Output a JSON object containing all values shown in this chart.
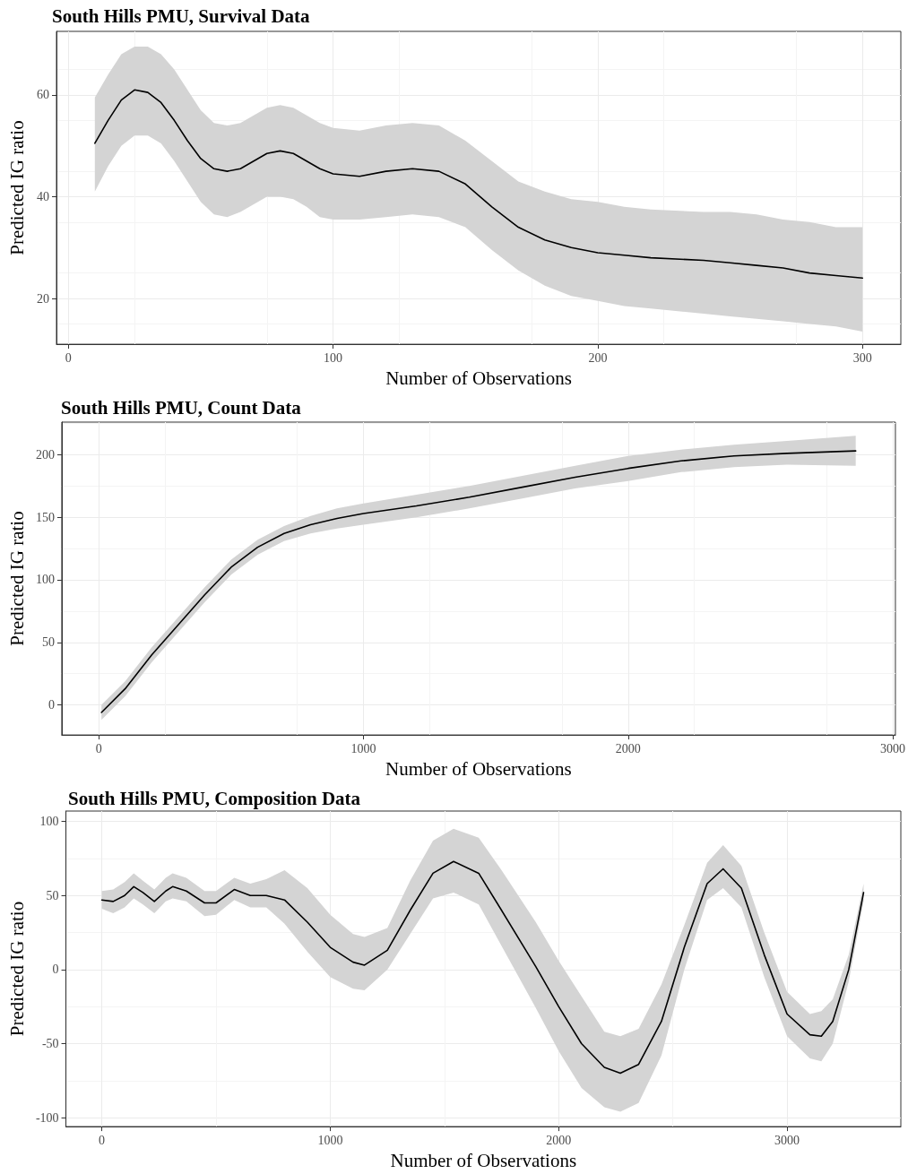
{
  "chart_data": [
    {
      "type": "line",
      "title": "South Hills PMU, Survival Data",
      "xlabel": "Number of Observations",
      "ylabel": "Predicted IG ratio",
      "grid": true,
      "x": [
        10,
        15,
        20,
        25,
        30,
        35,
        40,
        45,
        50,
        55,
        60,
        65,
        70,
        75,
        80,
        85,
        90,
        95,
        100,
        110,
        120,
        130,
        140,
        150,
        160,
        170,
        180,
        190,
        200,
        210,
        220,
        240,
        250,
        260,
        270,
        280,
        290,
        300
      ],
      "xlim": [
        -4.5,
        314.5
      ],
      "xticks": [
        0,
        100,
        200,
        300
      ],
      "ylim": [
        11,
        72.5
      ],
      "yticks": [
        20,
        40,
        60
      ],
      "series": [
        {
          "color": "#000000",
          "values": [
            50.5,
            55,
            59,
            61,
            60.5,
            58.5,
            55,
            51,
            47.5,
            45.5,
            45,
            45.5,
            47,
            48.5,
            49,
            48.5,
            47,
            45.5,
            44.5,
            44,
            45,
            45.5,
            45,
            42.5,
            38,
            34,
            31.5,
            30,
            29,
            28.5,
            28,
            27.5,
            27,
            26.5,
            26,
            25,
            24.5,
            24
          ],
          "lower": [
            41,
            46,
            50,
            52,
            52,
            50.5,
            47,
            43,
            39,
            36.5,
            36,
            37,
            38.5,
            40,
            40,
            39.5,
            38,
            36,
            35.5,
            35.5,
            36,
            36.5,
            36,
            34,
            29.5,
            25.5,
            22.5,
            20.5,
            19.5,
            18.5,
            18,
            17,
            16.5,
            16,
            15.5,
            15,
            14.5,
            13.5
          ],
          "upper": [
            59.5,
            64,
            68,
            69.5,
            69.5,
            68,
            65,
            61,
            57,
            54.5,
            54,
            54.5,
            56,
            57.5,
            58,
            57.5,
            56,
            54.5,
            53.5,
            53,
            54,
            54.5,
            54,
            51,
            47,
            43,
            41,
            39.5,
            39,
            38,
            37.5,
            37,
            37,
            36.5,
            35.5,
            35,
            34,
            34
          ]
        }
      ]
    },
    {
      "type": "line",
      "title": "South Hills PMU, Count Data",
      "xlabel": "Number of Observations",
      "ylabel": "Predicted IG ratio",
      "grid": true,
      "x": [
        10,
        100,
        200,
        300,
        400,
        500,
        600,
        700,
        800,
        900,
        1000,
        1200,
        1400,
        1600,
        1800,
        2000,
        2200,
        2400,
        2600,
        2860
      ],
      "xlim": [
        -140,
        3010
      ],
      "xticks": [
        0,
        1000,
        2000,
        3000
      ],
      "ylim": [
        -24,
        226
      ],
      "yticks": [
        0,
        50,
        100,
        150,
        200
      ],
      "series": [
        {
          "color": "#000000",
          "values": [
            -6,
            13,
            40,
            64,
            88,
            110,
            126,
            137,
            144,
            149,
            153,
            159,
            166,
            174,
            182,
            189,
            195,
            199,
            201,
            203
          ],
          "lower": [
            -12,
            7,
            34,
            58,
            82,
            104,
            120,
            131,
            137,
            141,
            144,
            150,
            157,
            165,
            173,
            179,
            186,
            190,
            192,
            191
          ],
          "upper": [
            0,
            19,
            46,
            70,
            94,
            116,
            132,
            143,
            151,
            157,
            161,
            168,
            175,
            183,
            191,
            199,
            204,
            208,
            211,
            215
          ]
        }
      ]
    },
    {
      "type": "line",
      "title": "South Hills PMU, Composition Data",
      "xlabel": "Number of Observations",
      "ylabel": "Predicted IG ratio",
      "grid": true,
      "x": [
        0,
        50,
        100,
        140,
        180,
        230,
        280,
        310,
        370,
        450,
        500,
        580,
        650,
        720,
        800,
        900,
        1000,
        1100,
        1150,
        1250,
        1350,
        1450,
        1540,
        1650,
        1750,
        1900,
        2000,
        2100,
        2200,
        2270,
        2350,
        2450,
        2550,
        2650,
        2720,
        2800,
        2900,
        3000,
        3100,
        3150,
        3200,
        3270,
        3335
      ],
      "xlim": [
        -157,
        3498
      ],
      "xticks": [
        0,
        1000,
        2000,
        3000
      ],
      "ylim": [
        -106,
        107
      ],
      "yticks": [
        -100,
        -50,
        0,
        50,
        100
      ],
      "series": [
        {
          "color": "#000000",
          "values": [
            47,
            46,
            50,
            56,
            52,
            46,
            53,
            56,
            53,
            45,
            45,
            54,
            50,
            50,
            47,
            32,
            15,
            5,
            3,
            13,
            40,
            65,
            73,
            65,
            40,
            2,
            -25,
            -50,
            -66,
            -70,
            -64,
            -35,
            15,
            58,
            68,
            55,
            10,
            -30,
            -44,
            -45,
            -35,
            0,
            52
          ],
          "lower": [
            41,
            38,
            42,
            48,
            44,
            38,
            46,
            48,
            46,
            36,
            37,
            47,
            42,
            42,
            31,
            12,
            -5,
            -13,
            -14,
            0,
            24,
            48,
            52,
            44,
            16,
            -26,
            -55,
            -80,
            -93,
            -96,
            -90,
            -58,
            0,
            47,
            55,
            42,
            -5,
            -45,
            -60,
            -62,
            -50,
            -8,
            46
          ],
          "upper": [
            53,
            54,
            59,
            65,
            60,
            54,
            62,
            65,
            62,
            53,
            53,
            62,
            58,
            61,
            67,
            55,
            37,
            24,
            22,
            28,
            60,
            87,
            95,
            89,
            67,
            32,
            6,
            -18,
            -42,
            -45,
            -40,
            -10,
            30,
            72,
            84,
            70,
            25,
            -15,
            -30,
            -28,
            -20,
            10,
            58
          ]
        }
      ]
    }
  ]
}
